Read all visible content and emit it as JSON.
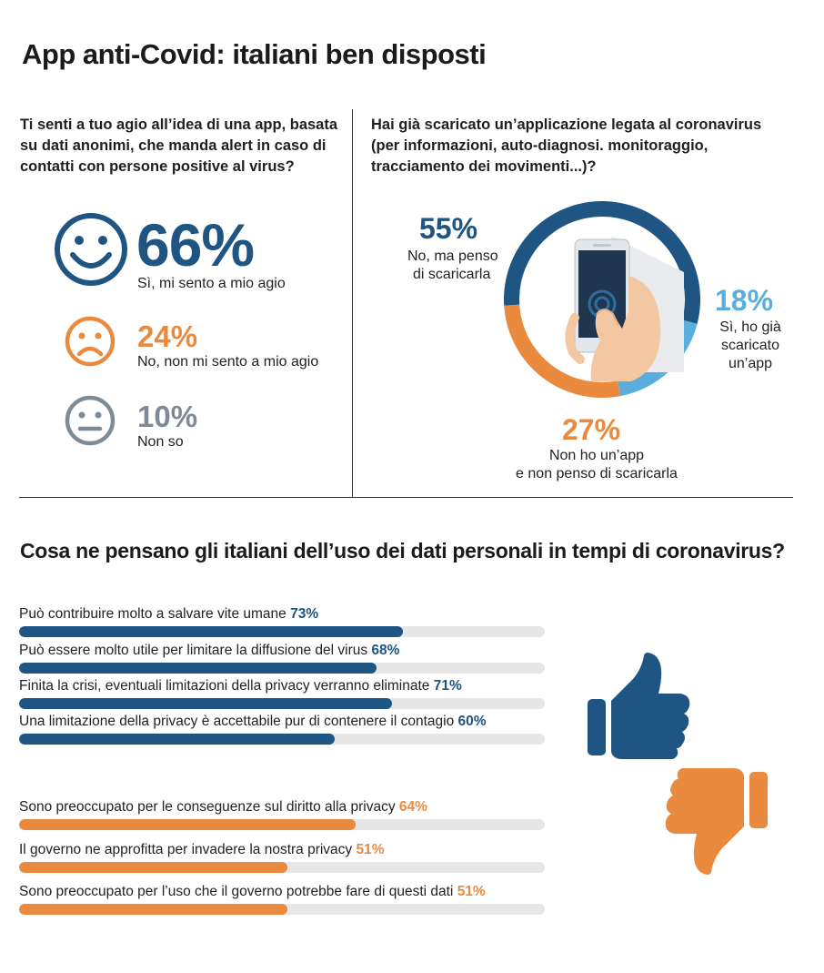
{
  "title": "App anti-Covid: italiani ben disposti",
  "colors": {
    "blue": "#1f5582",
    "orange": "#e98a3f",
    "gray": "#7e8b96",
    "lightblue": "#5aaede",
    "track": "#e6e6e6"
  },
  "left_panel": {
    "question": [
      "Ti senti a tuo agio all’idea di una app, basata",
      "su dati anonimi, che manda alert in caso di",
      "contatti con persone positive al virus?"
    ],
    "items": [
      {
        "icon": "happy-face-icon",
        "percent": "66%",
        "label": "Sì, mi sento a mio agio"
      },
      {
        "icon": "sad-face-icon",
        "percent": "24%",
        "label": "No, non mi sento a mio agio"
      },
      {
        "icon": "neutral-face-icon",
        "percent": "10%",
        "label": "Non so"
      }
    ]
  },
  "right_panel": {
    "question": [
      "Hai già scaricato un’applicazione legata al coronavirus",
      "(per informazioni, auto-diagnosi. monitoraggio,",
      "tracciamento dei movimenti...)?"
    ],
    "segments": [
      {
        "percent": "55%",
        "label_lines": [
          "No, ma penso",
          "di scaricarla"
        ]
      },
      {
        "percent": "18%",
        "label_lines": [
          "Sì, ho già",
          "scaricato",
          "un’app"
        ]
      },
      {
        "percent": "27%",
        "label_lines": [
          "Non ho un’app",
          "e non penso di scaricarla"
        ]
      }
    ]
  },
  "section2_title": "Cosa ne pensano gli italiani dell’uso dei dati personali in tempi di coronavirus?",
  "chart_data": [
    {
      "type": "pie",
      "categories": [
        "No, ma penso di scaricarla",
        "Sì, ho già scaricato un’app",
        "Non ho un’app e non penso di scaricarla"
      ],
      "values": [
        55,
        18,
        27
      ]
    },
    {
      "type": "bar",
      "orientation": "horizontal",
      "categories": [
        "Può contribuire molto a salvare vite umane",
        "Può essere molto utile per limitare la diffusione del virus",
        "Finita la crisi, eventuali limitazioni della privacy verranno eliminate",
        "Una limitazione della privacy è accettabile pur di contenere il contagio",
        "Sono preoccupato per le conseguenze sul diritto alla privacy",
        "Il governo ne approfitta per invadere la nostra privacy",
        "Sono preoccupato per l’uso che il governo potrebbe fare di questi dati"
      ],
      "values": [
        73,
        68,
        71,
        60,
        64,
        51,
        51
      ],
      "value_labels": [
        "73%",
        "68%",
        "71%",
        "60%",
        "64%",
        "51%",
        "51%"
      ],
      "groups": [
        "positive",
        "positive",
        "positive",
        "positive",
        "negative",
        "negative",
        "negative"
      ],
      "xlim": [
        0,
        100
      ]
    }
  ]
}
